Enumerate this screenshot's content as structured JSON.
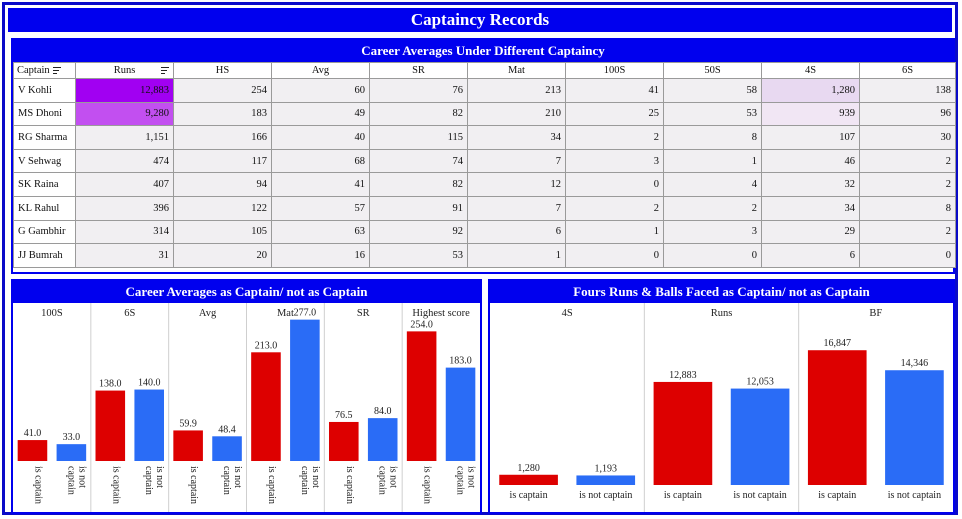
{
  "title": "Captaincy Records",
  "table": {
    "title": "Career Averages Under Different Captaincy",
    "headers": [
      "Captain",
      "Runs",
      "HS",
      "Avg",
      "SR",
      "Mat",
      "100S",
      "50S",
      "4S",
      "6S"
    ],
    "rows": [
      [
        "V Kohli",
        "12,883",
        "254",
        "60",
        "76",
        "213",
        "41",
        "58",
        "1,280",
        "138"
      ],
      [
        "MS Dhoni",
        "9,280",
        "183",
        "49",
        "82",
        "210",
        "25",
        "53",
        "939",
        "96"
      ],
      [
        "RG Sharma",
        "1,151",
        "166",
        "40",
        "115",
        "34",
        "2",
        "8",
        "107",
        "30"
      ],
      [
        "V Sehwag",
        "474",
        "117",
        "68",
        "74",
        "7",
        "3",
        "1",
        "46",
        "2"
      ],
      [
        "SK Raina",
        "407",
        "94",
        "41",
        "82",
        "12",
        "0",
        "4",
        "32",
        "2"
      ],
      [
        "KL Rahul",
        "396",
        "122",
        "57",
        "91",
        "7",
        "2",
        "2",
        "34",
        "8"
      ],
      [
        "G Gambhir",
        "314",
        "105",
        "63",
        "92",
        "6",
        "1",
        "3",
        "29",
        "2"
      ],
      [
        "JJ Bumrah",
        "31",
        "20",
        "16",
        "53",
        "1",
        "0",
        "0",
        "6",
        "0"
      ]
    ],
    "highlight_colors": {
      "runs_top": "#a100f2",
      "runs_second": "#c24ff0",
      "fours_top": "#e8d9f1",
      "fours_second": "#f1e6f4",
      "default_cell": "#f1eff2"
    }
  },
  "chart_data": [
    {
      "type": "bar",
      "title": "Career Averages as Captain/ not as Captain",
      "categories": [
        "is captain",
        "is not captain"
      ],
      "colors": [
        "#dd0000",
        "#2a6cf6"
      ],
      "ylim": [
        0,
        290
      ],
      "facets": [
        {
          "name": "100S",
          "values": [
            41.0,
            33.0
          ],
          "labels": [
            "41.0",
            "33.0"
          ]
        },
        {
          "name": "6S",
          "values": [
            138.0,
            140.0
          ],
          "labels": [
            "138.0",
            "140.0"
          ]
        },
        {
          "name": "Avg",
          "values": [
            59.9,
            48.4
          ],
          "labels": [
            "59.9",
            "48.4"
          ]
        },
        {
          "name": "Mat",
          "values": [
            213.0,
            277.0
          ],
          "labels": [
            "213.0",
            "277.0"
          ]
        },
        {
          "name": "SR",
          "values": [
            76.5,
            84.0
          ],
          "labels": [
            "76.5",
            "84.0"
          ]
        },
        {
          "name": "Highest score",
          "values": [
            254.0,
            183.0
          ],
          "labels": [
            "254.0",
            "183.0"
          ]
        }
      ]
    },
    {
      "type": "bar",
      "title": "Fours Runs & Balls Faced as Captain/ not as Captain",
      "categories": [
        "is captain",
        "is not captain"
      ],
      "colors": [
        "#dd0000",
        "#2a6cf6"
      ],
      "ylim": [
        0,
        18000
      ],
      "facets": [
        {
          "name": "4S",
          "values": [
            1280,
            1193
          ],
          "labels": [
            "1,280",
            "1,193"
          ]
        },
        {
          "name": "Runs",
          "values": [
            12883,
            12053
          ],
          "labels": [
            "12,883",
            "12,053"
          ]
        },
        {
          "name": "BF",
          "values": [
            16847,
            14346
          ],
          "labels": [
            "16,847",
            "14,346"
          ]
        }
      ]
    }
  ]
}
